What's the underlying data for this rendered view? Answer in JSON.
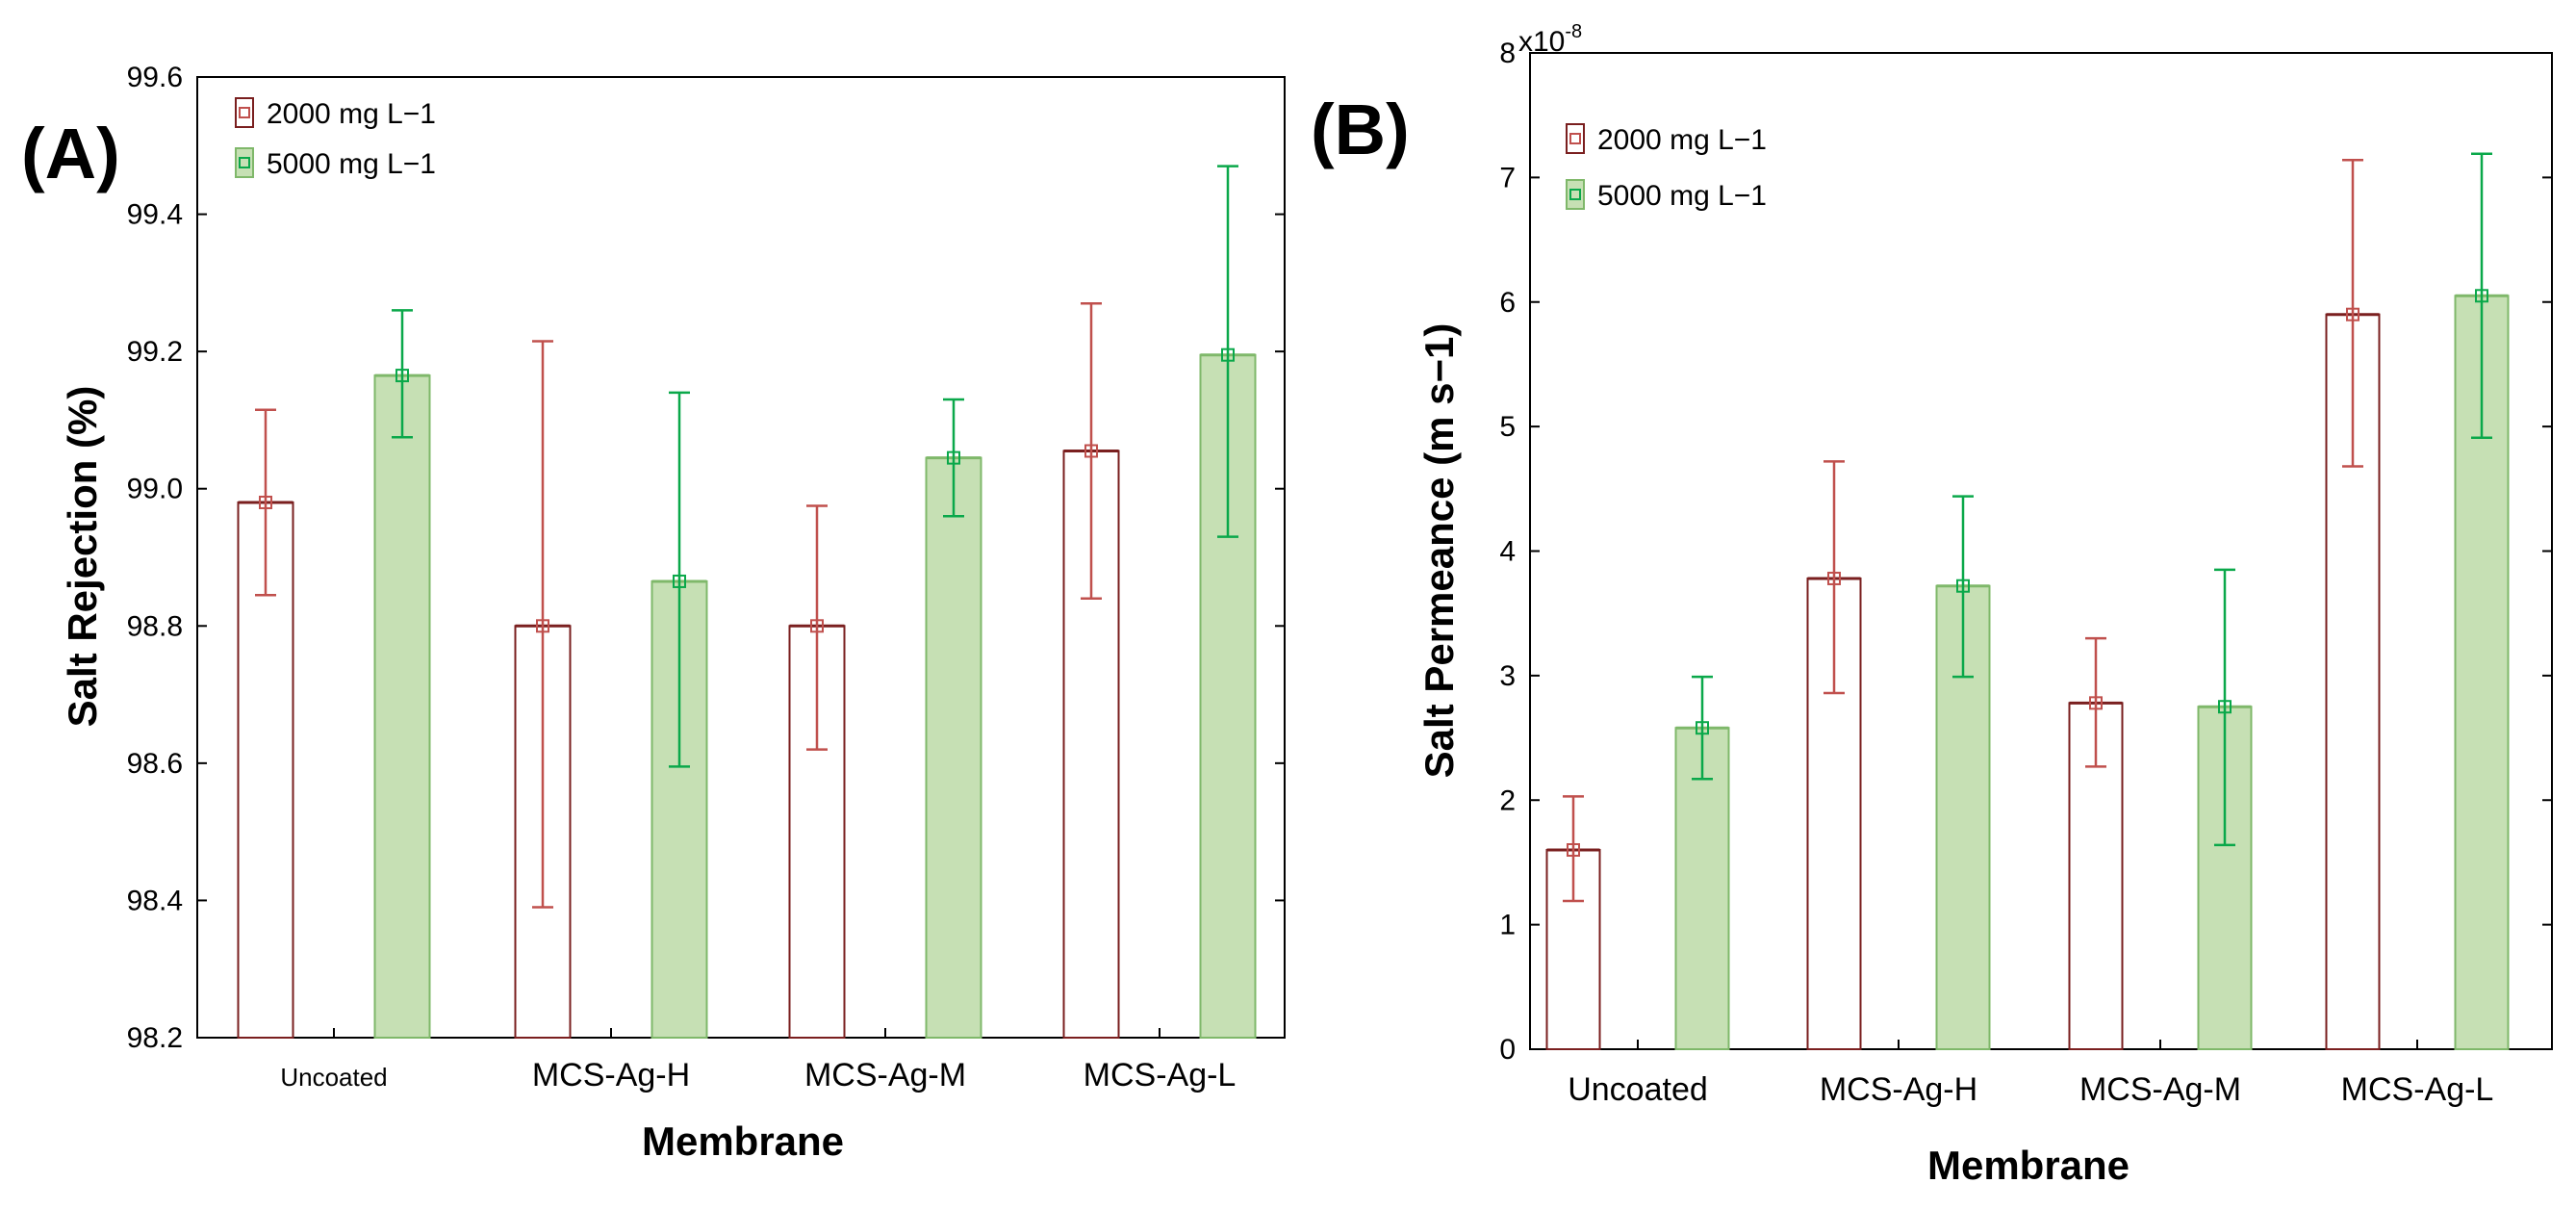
{
  "figure": {
    "colors": {
      "c2000_stroke": "#c0504d",
      "c2000_stroke_dark": "#7a1f1f",
      "c2000_fill": "#ffffff",
      "c5000_stroke": "#0aa84a",
      "c5000_fill": "#c6e0b4",
      "c5000_edge": "#7fb86a"
    }
  },
  "chart_data": [
    {
      "panel": "(A)",
      "type": "bar",
      "title": "",
      "xlabel": "Membrane",
      "ylabel": "Salt Rejection (%)",
      "ylim": [
        98.2,
        99.6
      ],
      "yticks": [
        98.2,
        98.4,
        98.6,
        98.8,
        99.0,
        99.2,
        99.4,
        99.6
      ],
      "ytick_labels": [
        "98.2",
        "98.4",
        "98.6",
        "98.8",
        "99.0",
        "99.2",
        "99.4",
        "99.6"
      ],
      "categories": [
        "Uncoated",
        "MCS-Ag-H",
        "MCS-Ag-M",
        "MCS-Ag-L"
      ],
      "legend_position": "top-left",
      "series": [
        {
          "name": "2000 mg L−1",
          "values": [
            98.98,
            98.8,
            98.8,
            99.055
          ],
          "err_low": [
            98.845,
            98.39,
            98.62,
            98.84
          ],
          "err_high": [
            99.115,
            99.215,
            98.975,
            99.27
          ]
        },
        {
          "name": "5000 mg L−1",
          "values": [
            99.165,
            98.865,
            99.045,
            99.195
          ],
          "err_low": [
            99.075,
            98.595,
            98.96,
            98.93
          ],
          "err_high": [
            99.26,
            99.14,
            99.13,
            99.47
          ]
        }
      ]
    },
    {
      "panel": "(B)",
      "type": "bar",
      "title": "",
      "xlabel": "Membrane",
      "ylabel": "Salt Permeance (m s−1)",
      "y_multiplier": "x10",
      "y_multiplier_exp": "-8",
      "ylim": [
        0,
        8
      ],
      "yticks": [
        0,
        1,
        2,
        3,
        4,
        5,
        6,
        7,
        8
      ],
      "ytick_labels": [
        "0",
        "1",
        "2",
        "3",
        "4",
        "5",
        "6",
        "7",
        "8"
      ],
      "categories": [
        "Uncoated",
        "MCS-Ag-H",
        "MCS-Ag-M",
        "MCS-Ag-L"
      ],
      "legend_position": "top-left",
      "series": [
        {
          "name": "2000 mg L−1",
          "values": [
            1.6,
            3.78,
            2.78,
            5.9
          ],
          "err_low": [
            1.19,
            2.86,
            2.27,
            4.68
          ],
          "err_high": [
            2.03,
            4.72,
            3.3,
            7.14
          ]
        },
        {
          "name": "5000 mg L−1",
          "values": [
            2.58,
            3.72,
            2.75,
            6.05
          ],
          "err_low": [
            2.17,
            2.99,
            1.64,
            4.91
          ],
          "err_high": [
            2.99,
            4.44,
            3.85,
            7.19
          ]
        }
      ]
    }
  ]
}
